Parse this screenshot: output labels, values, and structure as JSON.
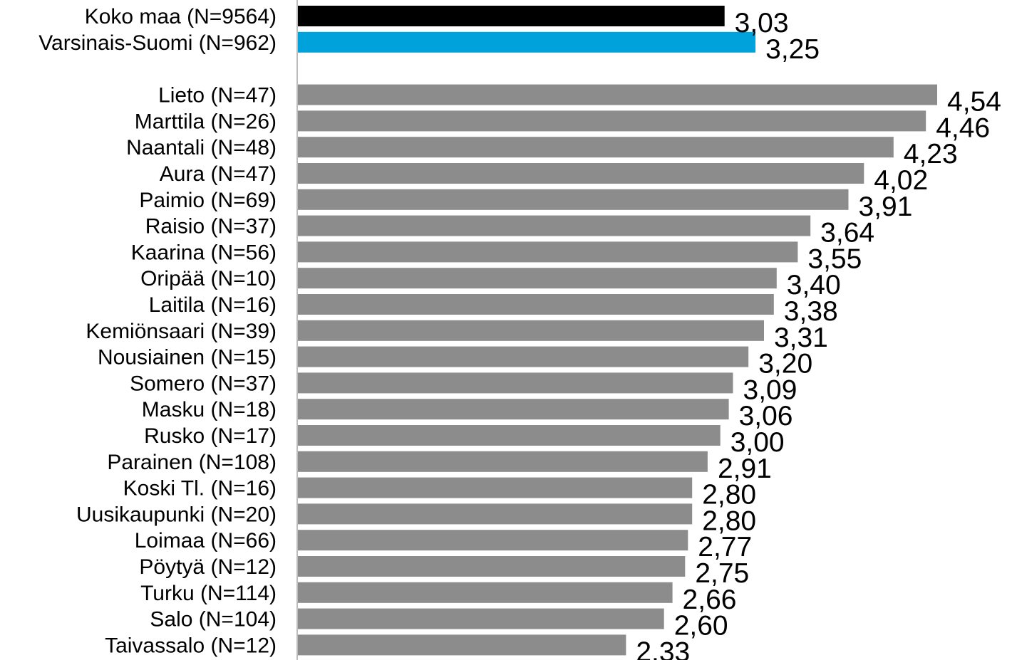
{
  "chart_data": {
    "type": "bar",
    "orientation": "horizontal",
    "title": "",
    "xlabel": "",
    "ylabel": "",
    "grid": false,
    "xlim": [
      0,
      4.7
    ],
    "decimal_separator": ",",
    "colors": {
      "national": "#000000",
      "region": "#00a2db",
      "municipality": "#8c8c8c",
      "axis": "#a6a6a6",
      "text": "#000000"
    },
    "categories": [
      "Koko maa (N=9564)",
      "Varsinais-Suomi (N=962)",
      "Lieto (N=47)",
      "Marttila (N=26)",
      "Naantali (N=48)",
      "Aura (N=47)",
      "Paimio (N=69)",
      "Raisio (N=37)",
      "Kaarina (N=56)",
      "Oripää (N=10)",
      "Laitila (N=16)",
      "Kemiönsaari (N=39)",
      "Nousiainen (N=15)",
      "Somero (N=37)",
      "Masku (N=18)",
      "Rusko (N=17)",
      "Parainen (N=108)",
      "Koski Tl. (N=16)",
      "Uusikaupunki (N=20)",
      "Loimaa (N=66)",
      "Pöytyä (N=12)",
      "Turku (N=114)",
      "Salo (N=104)",
      "Taivassalo (N=12)"
    ],
    "values": [
      3.03,
      3.25,
      4.54,
      4.46,
      4.23,
      4.02,
      3.91,
      3.64,
      3.55,
      3.4,
      3.38,
      3.31,
      3.2,
      3.09,
      3.06,
      3.0,
      2.91,
      2.8,
      2.8,
      2.77,
      2.75,
      2.66,
      2.6,
      2.33
    ],
    "value_labels": [
      "3,03",
      "3,25",
      "4,54",
      "4,46",
      "4,23",
      "4,02",
      "3,91",
      "3,64",
      "3,55",
      "3,40",
      "3,38",
      "3,31",
      "3,20",
      "3,09",
      "3,06",
      "3,00",
      "2,91",
      "2,80",
      "2,80",
      "2,77",
      "2,75",
      "2,66",
      "2,60",
      "2,33"
    ],
    "groups": [
      "national",
      "region",
      "municipality",
      "municipality",
      "municipality",
      "municipality",
      "municipality",
      "municipality",
      "municipality",
      "municipality",
      "municipality",
      "municipality",
      "municipality",
      "municipality",
      "municipality",
      "municipality",
      "municipality",
      "municipality",
      "municipality",
      "municipality",
      "municipality",
      "municipality",
      "municipality",
      "municipality"
    ]
  }
}
